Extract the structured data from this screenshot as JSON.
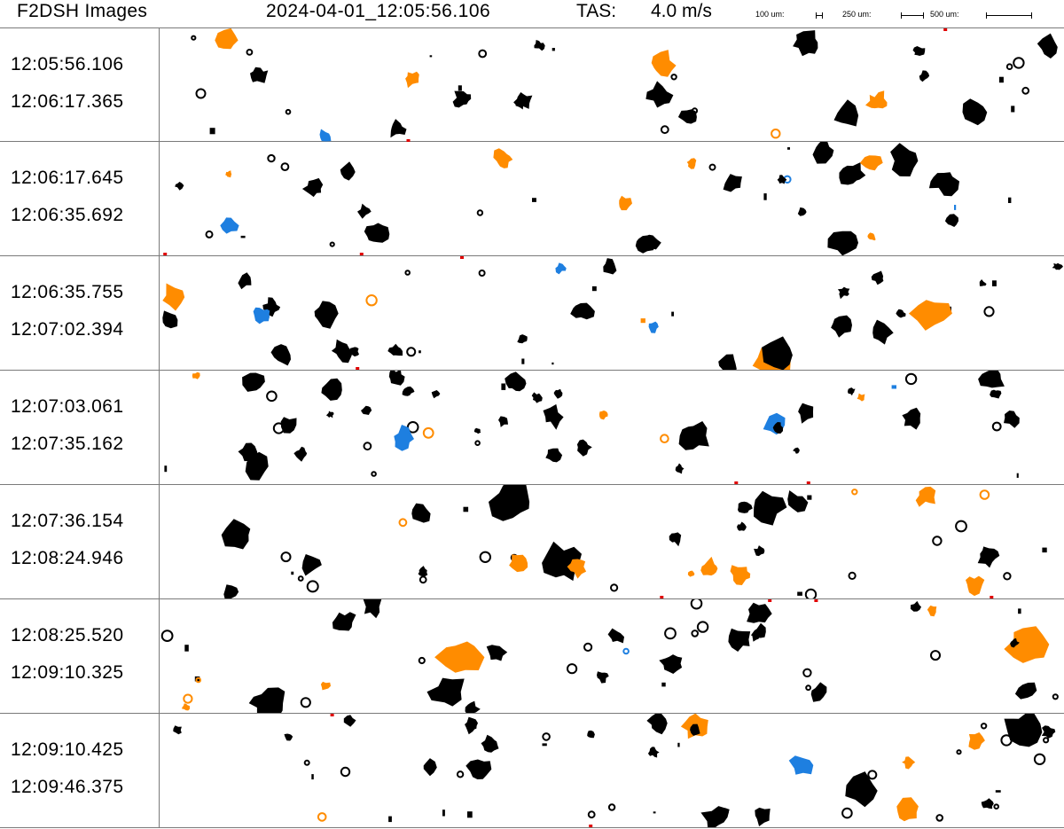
{
  "header": {
    "title": "F2DSH Images",
    "timestamp": "2024-04-01_12:05:56.106",
    "tas_label": "TAS:",
    "tas_value": "4.0 m/s",
    "scale_bars": [
      {
        "label": "100 um:"
      },
      {
        "label": "250 um:"
      },
      {
        "label": "500 um:"
      }
    ]
  },
  "colors": {
    "liquid": "#000000",
    "orange": "#ff8c00",
    "blue": "#1e7fe0",
    "red": "#e00000",
    "divider": "#7a7a7a"
  },
  "strips": [
    {
      "start": "12:05:56.106",
      "end": "12:06:17.365"
    },
    {
      "start": "12:06:17.645",
      "end": "12:06:35.692"
    },
    {
      "start": "12:06:35.755",
      "end": "12:07:02.394"
    },
    {
      "start": "12:07:03.061",
      "end": "12:07:35.162"
    },
    {
      "start": "12:07:36.154",
      "end": "12:08:24.946"
    },
    {
      "start": "12:08:25.520",
      "end": "12:09:10.325"
    },
    {
      "start": "12:09:10.425",
      "end": "12:09:46.375"
    }
  ]
}
